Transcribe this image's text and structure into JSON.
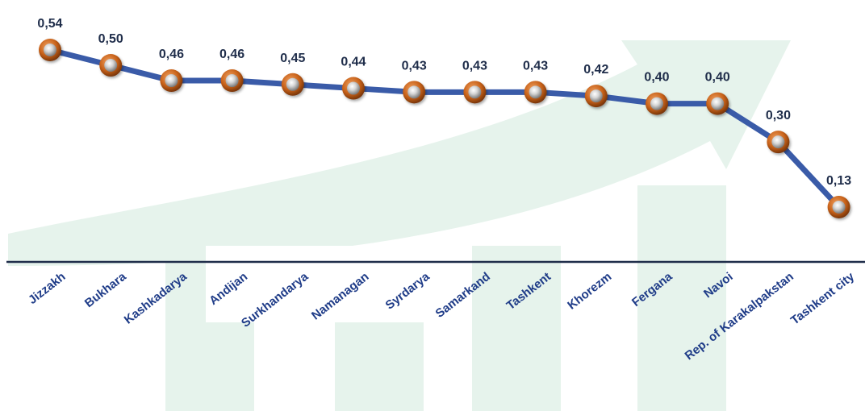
{
  "chart_data": {
    "type": "line",
    "categories": [
      "Jizzakh",
      "Bukhara",
      "Kashkadarya",
      "Andijan",
      "Surkhandarya",
      "Namanagan",
      "Syrdarya",
      "Samarkand",
      "Tashkent",
      "Khorezm",
      "Fergana",
      "Navoi",
      "Rep. of Karakalpakstan",
      "Tashkent city"
    ],
    "values": [
      0.54,
      0.5,
      0.46,
      0.46,
      0.45,
      0.44,
      0.43,
      0.43,
      0.43,
      0.42,
      0.4,
      0.4,
      0.3,
      0.13
    ],
    "data_labels": [
      "0,54",
      "0,50",
      "0,46",
      "0,46",
      "0,45",
      "0,44",
      "0,43",
      "0,43",
      "0,43",
      "0,42",
      "0,40",
      "0,40",
      "0,30",
      "0,13"
    ],
    "title": "",
    "xlabel": "",
    "ylabel": "",
    "grid": false,
    "legend": "none",
    "colors": {
      "line": "#3a5ba8",
      "marker_outer": "#c8621a",
      "marker_inner": "#c9c9c9",
      "axis": "#1f2d4a",
      "label": "#1f3c88",
      "value_label": "#1f2d4a",
      "watermark": "#e6f3ec"
    }
  }
}
